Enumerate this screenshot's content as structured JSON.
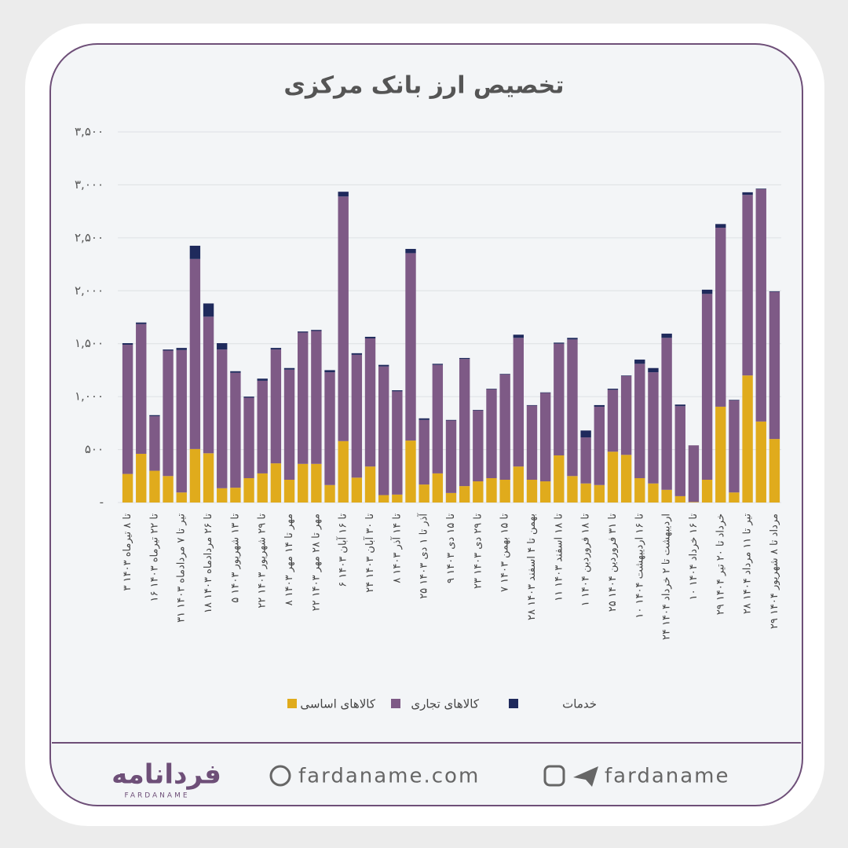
{
  "chart_data": {
    "type": "stacked_bar",
    "title": "تخصیص ارز بانک مرکزی",
    "categories": [
      "۳ تا ۸ تیرماه ۱۴۰۳",
      null,
      "۱۶ تا ۲۲ تیرماه ۱۴۰۳",
      null,
      "۳۱ تیر تا ۷ مردادماه ۱۴۰۳",
      null,
      "۱۸ تا ۲۶ مردادماه ۱۴۰۳",
      null,
      "۵ تا ۱۳ شهریور ۱۴۰۳",
      null,
      "۲۲ تا ۲۹ شهریور ۱۴۰۳",
      null,
      "۸ مهر تا ۱۴ مهر ۱۴۰۳",
      null,
      "۲۲ مهر تا ۲۸ مهر ۱۴۰۳",
      null,
      "۶ تا ۱۶ آبان ۱۴۰۳",
      null,
      "۲۴ تا ۳۰ آبان ۱۴۰۳",
      null,
      "۸ تا ۱۴ آذر ۱۴۰۳",
      null,
      "۲۵ آذر تا ۱ دی ۱۴۰۳",
      null,
      "۹ تا ۱۵ دی ۱۴۰۳",
      null,
      "۲۳ تا ۲۹ دی ۱۴۰۳",
      null,
      "۷ تا ۱۵ بهمن ۱۴۰۳",
      null,
      "۲۸ بهمن تا ۴ اسفند ۱۴۰۳",
      null,
      "۱۱ تا ۱۸ اسفند ۱۴۰۳",
      null,
      "۱ تا ۱۸ فروردین ۱۴۰۴",
      null,
      "۲۵ تا ۳۱ فروردین ۱۴۰۴",
      null,
      "۱۰ تا ۱۶ اردیبهشت ۱۴۰۴",
      null,
      "۲۴ اردیبهشت تا ۲ خرداد ۱۴۰۴",
      null,
      "۱۰ تا ۱۶ خرداد ۱۴۰۴",
      null,
      "۲۹ خرداد تا ۲۰ تیر ۱۴۰۴",
      null,
      "۲۸ تیر تا ۱۱ مرداد ۱۴۰۴",
      null,
      "۲۹ مرداد تا ۸ شهریور ۱۴۰۴"
    ],
    "series": [
      {
        "name": "کالاهای اساسی",
        "color": "#e0ab1c",
        "values": [
          270,
          460,
          300,
          250,
          95,
          505,
          465,
          135,
          140,
          230,
          275,
          370,
          215,
          365,
          365,
          165,
          580,
          235,
          340,
          70,
          75,
          585,
          170,
          275,
          90,
          155,
          200,
          230,
          215,
          340,
          215,
          200,
          445,
          250,
          180,
          165,
          480,
          450,
          230,
          180,
          120,
          60,
          5,
          215,
          905,
          95,
          1200,
          765,
          600
        ]
      },
      {
        "name": "کالاهای تجاری",
        "color": "#7e5a86",
        "values": [
          1220,
          1225,
          515,
          1185,
          1345,
          1795,
          1290,
          1310,
          1085,
          760,
          875,
          1075,
          1040,
          1240,
          1255,
          1065,
          2310,
          1160,
          1210,
          1215,
          975,
          1770,
          610,
          1025,
          685,
          1200,
          670,
          840,
          995,
          1215,
          700,
          835,
          1055,
          1290,
          435,
          740,
          585,
          745,
          1080,
          1050,
          1435,
          850,
          535,
          1755,
          1690,
          870,
          1705,
          2195,
          1390
        ]
      },
      {
        "name": "خدمات",
        "color": "#1f2a5c",
        "values": [
          15,
          15,
          10,
          10,
          20,
          125,
          125,
          60,
          15,
          10,
          20,
          15,
          15,
          10,
          10,
          20,
          45,
          15,
          15,
          15,
          10,
          40,
          15,
          10,
          5,
          10,
          5,
          5,
          5,
          30,
          5,
          5,
          10,
          15,
          65,
          15,
          10,
          5,
          40,
          40,
          40,
          15,
          0,
          40,
          35,
          5,
          25,
          5,
          5
        ]
      }
    ],
    "ylim": [
      0,
      3500
    ],
    "yticks": [
      {
        "value": 0,
        "label": "-"
      },
      {
        "value": 500,
        "label": "۵۰۰"
      },
      {
        "value": 1000,
        "label": "۱,۰۰۰"
      },
      {
        "value": 1500,
        "label": "۱,۵۰۰"
      },
      {
        "value": 2000,
        "label": "۲,۰۰۰"
      },
      {
        "value": 2500,
        "label": "۲,۵۰۰"
      },
      {
        "value": 3000,
        "label": "۳,۰۰۰"
      },
      {
        "value": 3500,
        "label": "۳,۵۰۰"
      }
    ],
    "grid": true
  },
  "footer": {
    "logo": "فردانامه",
    "logo_sub": "FARDANAME",
    "website": "fardaname.com",
    "social": "fardaname"
  }
}
